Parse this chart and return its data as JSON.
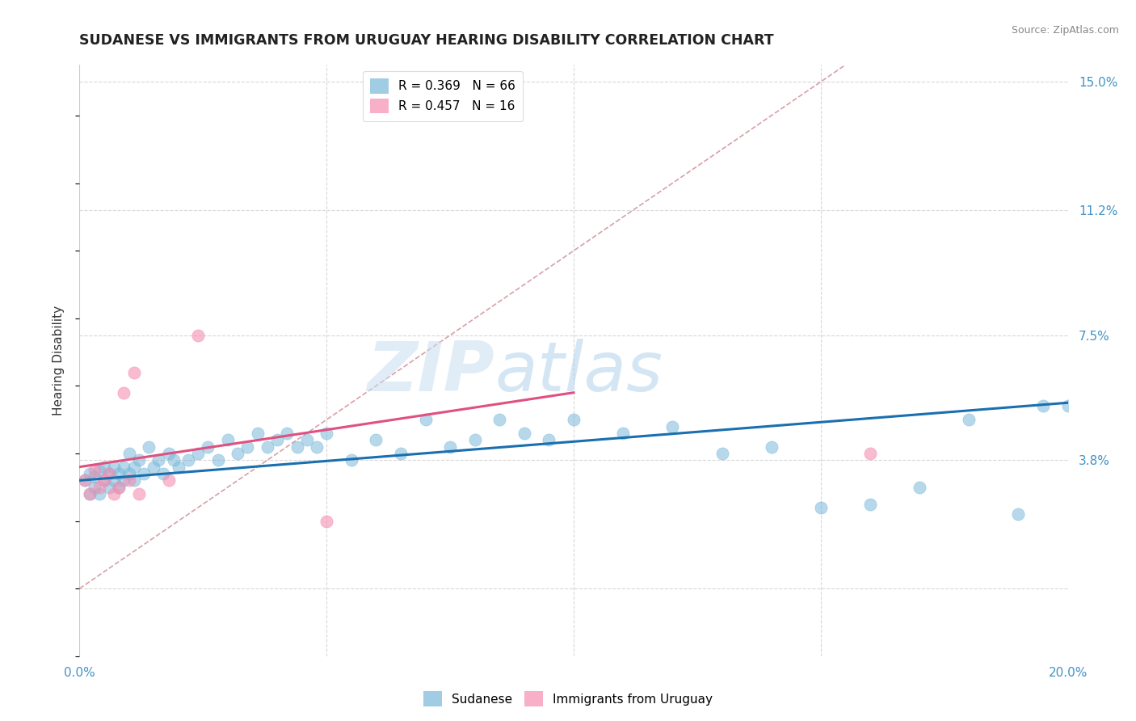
{
  "title": "SUDANESE VS IMMIGRANTS FROM URUGUAY HEARING DISABILITY CORRELATION CHART",
  "source": "Source: ZipAtlas.com",
  "ylabel": "Hearing Disability",
  "xmin": 0.0,
  "xmax": 0.2,
  "ymin": -0.02,
  "ymax": 0.155,
  "x_ticks": [
    0.0,
    0.05,
    0.1,
    0.15,
    0.2
  ],
  "x_tick_labels": [
    "0.0%",
    "",
    "",
    "",
    "20.0%"
  ],
  "y_tick_positions_right": [
    0.0,
    0.038,
    0.075,
    0.112,
    0.15
  ],
  "y_tick_labels_right": [
    "",
    "3.8%",
    "7.5%",
    "11.2%",
    "15.0%"
  ],
  "watermark_zip": "ZIP",
  "watermark_atlas": "atlas",
  "sudanese_color": "#7ab8d9",
  "uruguay_color": "#f48fb1",
  "trendline_sudanese_color": "#1a6faf",
  "trendline_uruguay_color": "#e05080",
  "trendline_diagonal_color": "#d8a0a8",
  "grid_color": "#d8d8d8",
  "legend_entries": [
    {
      "label": "R = 0.369   N = 66",
      "color": "#7ab8d9"
    },
    {
      "label": "R = 0.457   N = 16",
      "color": "#f48fb1"
    }
  ],
  "sudanese_points": [
    [
      0.001,
      0.032
    ],
    [
      0.002,
      0.034
    ],
    [
      0.002,
      0.028
    ],
    [
      0.003,
      0.03
    ],
    [
      0.003,
      0.033
    ],
    [
      0.004,
      0.035
    ],
    [
      0.004,
      0.028
    ],
    [
      0.005,
      0.032
    ],
    [
      0.005,
      0.036
    ],
    [
      0.006,
      0.034
    ],
    [
      0.006,
      0.03
    ],
    [
      0.007,
      0.036
    ],
    [
      0.007,
      0.032
    ],
    [
      0.008,
      0.034
    ],
    [
      0.008,
      0.03
    ],
    [
      0.009,
      0.036
    ],
    [
      0.009,
      0.032
    ],
    [
      0.01,
      0.034
    ],
    [
      0.01,
      0.04
    ],
    [
      0.011,
      0.036
    ],
    [
      0.011,
      0.032
    ],
    [
      0.012,
      0.038
    ],
    [
      0.013,
      0.034
    ],
    [
      0.014,
      0.042
    ],
    [
      0.015,
      0.036
    ],
    [
      0.016,
      0.038
    ],
    [
      0.017,
      0.034
    ],
    [
      0.018,
      0.04
    ],
    [
      0.019,
      0.038
    ],
    [
      0.02,
      0.036
    ],
    [
      0.022,
      0.038
    ],
    [
      0.024,
      0.04
    ],
    [
      0.026,
      0.042
    ],
    [
      0.028,
      0.038
    ],
    [
      0.03,
      0.044
    ],
    [
      0.032,
      0.04
    ],
    [
      0.034,
      0.042
    ],
    [
      0.036,
      0.046
    ],
    [
      0.038,
      0.042
    ],
    [
      0.04,
      0.044
    ],
    [
      0.042,
      0.046
    ],
    [
      0.044,
      0.042
    ],
    [
      0.046,
      0.044
    ],
    [
      0.048,
      0.042
    ],
    [
      0.05,
      0.046
    ],
    [
      0.055,
      0.038
    ],
    [
      0.06,
      0.044
    ],
    [
      0.065,
      0.04
    ],
    [
      0.07,
      0.05
    ],
    [
      0.075,
      0.042
    ],
    [
      0.08,
      0.044
    ],
    [
      0.085,
      0.05
    ],
    [
      0.09,
      0.046
    ],
    [
      0.095,
      0.044
    ],
    [
      0.1,
      0.05
    ],
    [
      0.11,
      0.046
    ],
    [
      0.12,
      0.048
    ],
    [
      0.13,
      0.04
    ],
    [
      0.14,
      0.042
    ],
    [
      0.15,
      0.024
    ],
    [
      0.16,
      0.025
    ],
    [
      0.17,
      0.03
    ],
    [
      0.18,
      0.05
    ],
    [
      0.19,
      0.022
    ],
    [
      0.195,
      0.054
    ],
    [
      0.2,
      0.054
    ]
  ],
  "uruguay_points": [
    [
      0.001,
      0.032
    ],
    [
      0.002,
      0.028
    ],
    [
      0.003,
      0.035
    ],
    [
      0.004,
      0.03
    ],
    [
      0.005,
      0.032
    ],
    [
      0.006,
      0.034
    ],
    [
      0.007,
      0.028
    ],
    [
      0.008,
      0.03
    ],
    [
      0.009,
      0.058
    ],
    [
      0.01,
      0.032
    ],
    [
      0.011,
      0.064
    ],
    [
      0.012,
      0.028
    ],
    [
      0.018,
      0.032
    ],
    [
      0.024,
      0.075
    ],
    [
      0.05,
      0.02
    ],
    [
      0.16,
      0.04
    ]
  ],
  "trendline_sudanese": [
    [
      0.0,
      0.032
    ],
    [
      0.2,
      0.055
    ]
  ],
  "trendline_uruguay": [
    [
      0.0,
      0.036
    ],
    [
      0.1,
      0.058
    ]
  ],
  "trendline_diagonal": [
    [
      0.0,
      0.0
    ],
    [
      0.155,
      0.155
    ]
  ]
}
